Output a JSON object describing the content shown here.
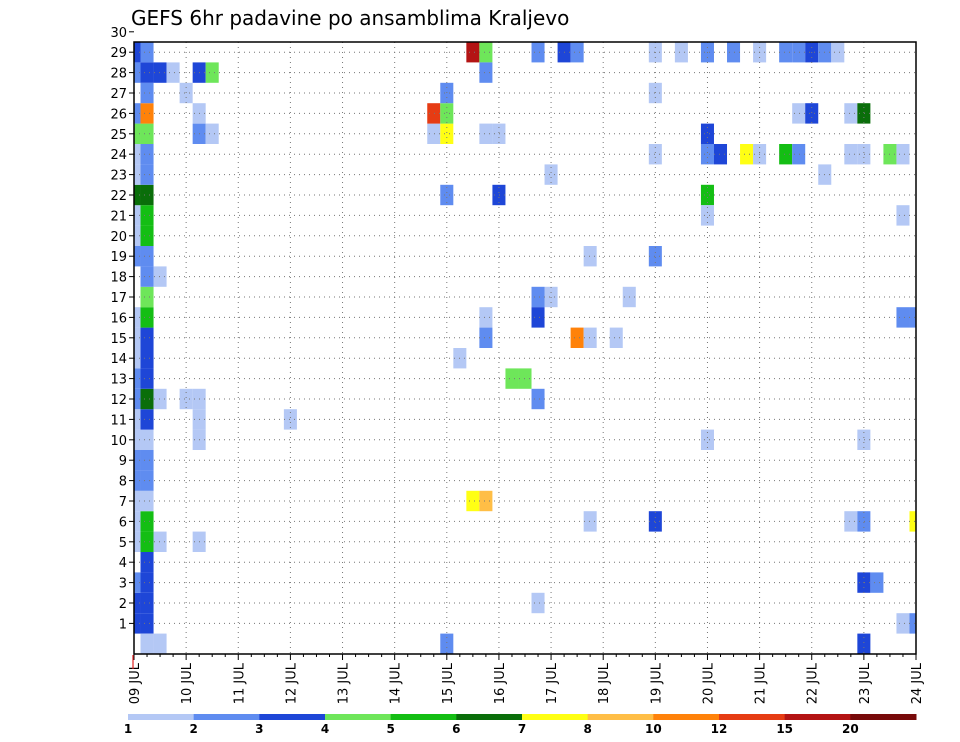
{
  "chart_data": {
    "type": "heatmap",
    "title": "GEFS 6hr padavine po ansamblima Kraljevo",
    "x_ticks": [
      "09 JUL",
      "10 JUL",
      "11 JUL",
      "12 JUL",
      "13 JUL",
      "14 JUL",
      "15 JUL",
      "16 JUL",
      "17 JUL",
      "18 JUL",
      "19 JUL",
      "20 JUL",
      "21 JUL",
      "22 JUL",
      "23 JUL",
      "24 JUL"
    ],
    "y_ticks": [
      "1",
      "2",
      "3",
      "4",
      "5",
      "6",
      "7",
      "8",
      "9",
      "10",
      "11",
      "12",
      "13",
      "14",
      "15",
      "16",
      "17",
      "18",
      "19",
      "20",
      "21",
      "22",
      "23",
      "24",
      "25",
      "26",
      "27",
      "28",
      "29",
      "30"
    ],
    "xlim": [
      0,
      60
    ],
    "ylim": [
      0,
      30
    ],
    "grid": true,
    "colorbar": {
      "labels": [
        "1",
        "2",
        "3",
        "4",
        "5",
        "6",
        "7",
        "8",
        "10",
        "12",
        "15",
        "20"
      ],
      "colors": [
        "#b4c8f5",
        "#5f8cf0",
        "#1e46d7",
        "#6ee65a",
        "#14be14",
        "#0a6e0a",
        "#ffff14",
        "#ffbe46",
        "#ff820a",
        "#e63c14",
        "#b41414",
        "#780a0a"
      ]
    },
    "cells": [
      [
        0,
        1,
        3
      ],
      [
        1,
        1,
        3
      ],
      [
        0,
        2,
        3
      ],
      [
        1,
        2,
        3
      ],
      [
        0,
        3,
        2
      ],
      [
        1,
        3,
        3
      ],
      [
        1,
        4,
        3
      ],
      [
        0,
        5,
        1
      ],
      [
        1,
        5,
        5
      ],
      [
        0,
        6,
        1
      ],
      [
        1,
        6,
        5
      ],
      [
        0,
        7,
        1
      ],
      [
        1,
        7,
        1
      ],
      [
        0,
        8,
        2
      ],
      [
        1,
        8,
        2
      ],
      [
        0,
        9,
        2
      ],
      [
        1,
        9,
        2
      ],
      [
        0,
        10,
        1
      ],
      [
        1,
        10,
        1
      ],
      [
        0,
        11,
        1
      ],
      [
        1,
        11,
        3
      ],
      [
        0,
        12,
        2
      ],
      [
        1,
        12,
        6
      ],
      [
        0,
        13,
        2
      ],
      [
        1,
        13,
        3
      ],
      [
        0,
        14,
        1
      ],
      [
        1,
        14,
        3
      ],
      [
        0,
        15,
        1
      ],
      [
        1,
        15,
        3
      ],
      [
        0,
        16,
        1
      ],
      [
        1,
        16,
        5
      ],
      [
        1,
        17,
        4
      ],
      [
        1,
        18,
        2
      ],
      [
        0,
        19,
        2
      ],
      [
        1,
        19,
        2
      ],
      [
        0,
        20,
        1
      ],
      [
        1,
        20,
        5
      ],
      [
        0,
        21,
        1
      ],
      [
        1,
        21,
        5
      ],
      [
        0,
        22,
        6
      ],
      [
        1,
        22,
        6
      ],
      [
        0,
        23,
        1
      ],
      [
        1,
        23,
        2
      ],
      [
        0,
        24,
        1
      ],
      [
        1,
        24,
        2
      ],
      [
        0,
        25,
        4
      ],
      [
        1,
        25,
        4
      ],
      [
        0,
        26,
        2
      ],
      [
        1,
        26,
        9
      ],
      [
        1,
        27,
        2
      ],
      [
        0,
        28,
        2
      ],
      [
        1,
        28,
        3
      ],
      [
        0,
        29,
        3
      ],
      [
        1,
        29,
        2
      ],
      [
        0,
        30,
        2
      ],
      [
        1,
        30,
        2
      ],
      [
        1,
        0,
        1
      ],
      [
        2,
        0,
        1
      ],
      [
        2,
        28,
        3
      ],
      [
        3,
        28,
        1
      ],
      [
        2,
        5,
        1
      ],
      [
        2,
        12,
        1
      ],
      [
        2,
        18,
        1
      ],
      [
        4,
        12,
        1
      ],
      [
        5,
        12,
        1
      ],
      [
        4,
        27,
        1
      ],
      [
        5,
        28,
        3
      ],
      [
        6,
        28,
        4
      ],
      [
        5,
        25,
        2
      ],
      [
        6,
        25,
        1
      ],
      [
        5,
        26,
        1
      ],
      [
        5,
        11,
        1
      ],
      [
        5,
        10,
        1
      ],
      [
        5,
        5,
        1
      ],
      [
        12,
        11,
        1
      ],
      [
        23,
        25,
        1
      ],
      [
        24,
        25,
        7
      ],
      [
        23,
        26,
        10
      ],
      [
        24,
        26,
        4
      ],
      [
        24,
        27,
        2
      ],
      [
        24,
        22,
        2
      ],
      [
        24,
        0,
        2
      ],
      [
        25,
        14,
        1
      ],
      [
        26,
        29,
        11
      ],
      [
        27,
        29,
        4
      ],
      [
        27,
        28,
        2
      ],
      [
        26,
        7,
        7
      ],
      [
        27,
        7,
        8
      ],
      [
        27,
        16,
        1
      ],
      [
        27,
        15,
        2
      ],
      [
        27,
        25,
        1
      ],
      [
        28,
        25,
        1
      ],
      [
        28,
        22,
        3
      ],
      [
        29,
        13,
        4
      ],
      [
        30,
        13,
        4
      ],
      [
        31,
        29,
        2
      ],
      [
        32,
        23,
        1
      ],
      [
        32,
        17,
        1
      ],
      [
        31,
        12,
        2
      ],
      [
        31,
        17,
        2
      ],
      [
        31,
        16,
        3
      ],
      [
        31,
        2,
        1
      ],
      [
        32,
        30,
        1
      ],
      [
        33,
        29,
        3
      ],
      [
        34,
        29,
        2
      ],
      [
        34,
        15,
        9
      ],
      [
        35,
        15,
        1
      ],
      [
        35,
        19,
        1
      ],
      [
        35,
        6,
        1
      ],
      [
        37,
        15,
        1
      ],
      [
        38,
        17,
        1
      ],
      [
        40,
        29,
        1
      ],
      [
        40,
        24,
        1
      ],
      [
        40,
        27,
        1
      ],
      [
        40,
        19,
        2
      ],
      [
        40,
        6,
        3
      ],
      [
        42,
        29,
        1
      ],
      [
        44,
        29,
        2
      ],
      [
        44,
        24,
        2
      ],
      [
        44,
        25,
        3
      ],
      [
        44,
        22,
        5
      ],
      [
        44,
        21,
        1
      ],
      [
        44,
        10,
        1
      ],
      [
        45,
        24,
        3
      ],
      [
        46,
        29,
        2
      ],
      [
        47,
        24,
        7
      ],
      [
        48,
        29,
        1
      ],
      [
        48,
        24,
        1
      ],
      [
        50,
        24,
        5
      ],
      [
        50,
        29,
        2
      ],
      [
        51,
        29,
        2
      ],
      [
        52,
        29,
        3
      ],
      [
        53,
        29,
        2
      ],
      [
        54,
        29,
        1
      ],
      [
        51,
        26,
        1
      ],
      [
        52,
        26,
        3
      ],
      [
        51,
        24,
        2
      ],
      [
        53,
        23,
        1
      ],
      [
        55,
        26,
        1
      ],
      [
        56,
        26,
        6
      ],
      [
        55,
        24,
        1
      ],
      [
        56,
        24,
        1
      ],
      [
        55,
        6,
        1
      ],
      [
        56,
        6,
        2
      ],
      [
        56,
        3,
        3
      ],
      [
        57,
        3,
        2
      ],
      [
        56,
        10,
        1
      ],
      [
        56,
        0,
        3
      ],
      [
        58,
        24,
        4
      ],
      [
        59,
        24,
        1
      ],
      [
        59,
        21,
        1
      ],
      [
        59,
        16,
        2
      ],
      [
        60,
        16,
        2
      ],
      [
        60,
        6,
        7
      ],
      [
        59,
        1,
        1
      ],
      [
        60,
        1,
        2
      ]
    ]
  }
}
